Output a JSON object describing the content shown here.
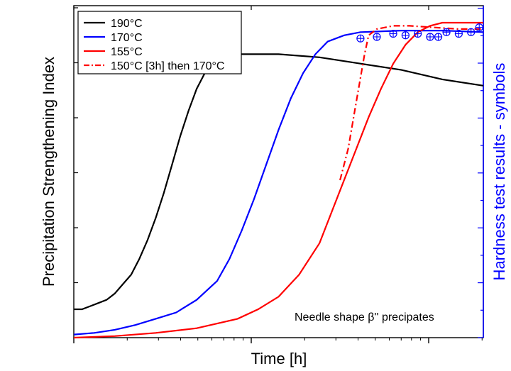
{
  "chart_data": {
    "type": "line",
    "xlabel": "Time [h]",
    "ylabel_left": "Precipitation Strengthening Index",
    "ylabel_right": "Hardness test results - symbols",
    "x_scale": "log",
    "annotation": "Needle shape β'' precipates",
    "x_ticks_labeled": false,
    "y_ticks_labeled": false,
    "legend_position": "top-left",
    "series": [
      {
        "name": "190°C",
        "color": "#000000",
        "style": "solid",
        "points": [
          [
            0,
            0.09
          ],
          [
            0.02,
            0.09
          ],
          [
            0.04,
            0.1
          ],
          [
            0.06,
            0.11
          ],
          [
            0.08,
            0.12
          ],
          [
            0.1,
            0.14
          ],
          [
            0.12,
            0.17
          ],
          [
            0.14,
            0.2
          ],
          [
            0.16,
            0.25
          ],
          [
            0.18,
            0.31
          ],
          [
            0.2,
            0.38
          ],
          [
            0.22,
            0.46
          ],
          [
            0.24,
            0.55
          ],
          [
            0.26,
            0.64
          ],
          [
            0.28,
            0.72
          ],
          [
            0.3,
            0.79
          ],
          [
            0.32,
            0.84
          ],
          [
            0.34,
            0.87
          ],
          [
            0.36,
            0.89
          ],
          [
            0.38,
            0.896
          ],
          [
            0.4,
            0.9
          ],
          [
            0.5,
            0.9
          ],
          [
            0.6,
            0.89
          ],
          [
            0.7,
            0.87
          ],
          [
            0.8,
            0.85
          ],
          [
            0.9,
            0.82
          ],
          [
            1.0,
            0.8
          ]
        ]
      },
      {
        "name": "170°C",
        "color": "#0000ff",
        "style": "solid",
        "points": [
          [
            0,
            0.01
          ],
          [
            0.05,
            0.015
          ],
          [
            0.1,
            0.025
          ],
          [
            0.15,
            0.04
          ],
          [
            0.2,
            0.06
          ],
          [
            0.25,
            0.08
          ],
          [
            0.3,
            0.12
          ],
          [
            0.35,
            0.18
          ],
          [
            0.38,
            0.25
          ],
          [
            0.41,
            0.34
          ],
          [
            0.44,
            0.44
          ],
          [
            0.47,
            0.55
          ],
          [
            0.5,
            0.66
          ],
          [
            0.53,
            0.76
          ],
          [
            0.56,
            0.84
          ],
          [
            0.59,
            0.9
          ],
          [
            0.62,
            0.94
          ],
          [
            0.66,
            0.96
          ],
          [
            0.7,
            0.97
          ],
          [
            0.8,
            0.975
          ],
          [
            0.9,
            0.975
          ],
          [
            1.0,
            0.97
          ]
        ]
      },
      {
        "name": "155°C",
        "color": "#ff0000",
        "style": "solid",
        "points": [
          [
            0,
            0.0
          ],
          [
            0.1,
            0.005
          ],
          [
            0.2,
            0.015
          ],
          [
            0.3,
            0.03
          ],
          [
            0.4,
            0.06
          ],
          [
            0.45,
            0.09
          ],
          [
            0.5,
            0.13
          ],
          [
            0.55,
            0.2
          ],
          [
            0.6,
            0.3
          ],
          [
            0.63,
            0.4
          ],
          [
            0.66,
            0.5
          ],
          [
            0.69,
            0.6
          ],
          [
            0.72,
            0.7
          ],
          [
            0.75,
            0.79
          ],
          [
            0.78,
            0.87
          ],
          [
            0.81,
            0.93
          ],
          [
            0.84,
            0.97
          ],
          [
            0.87,
            0.99
          ],
          [
            0.9,
            1.0
          ],
          [
            1.0,
            1.0
          ]
        ]
      },
      {
        "name": "150°C [3h] then 170°C",
        "color": "#ff0000",
        "style": "dashdot",
        "points": [
          [
            0.65,
            0.5
          ],
          [
            0.67,
            0.6
          ],
          [
            0.69,
            0.75
          ],
          [
            0.71,
            0.9
          ],
          [
            0.72,
            0.96
          ],
          [
            0.74,
            0.98
          ],
          [
            0.76,
            0.985
          ],
          [
            0.78,
            0.99
          ],
          [
            0.82,
            0.99
          ],
          [
            0.88,
            0.985
          ],
          [
            0.94,
            0.98
          ],
          [
            1.0,
            0.98
          ]
        ]
      }
    ],
    "hardness_points": [
      [
        0.7,
        0.95
      ],
      [
        0.74,
        0.955
      ],
      [
        0.78,
        0.965
      ],
      [
        0.81,
        0.96
      ],
      [
        0.84,
        0.965
      ],
      [
        0.87,
        0.955
      ],
      [
        0.89,
        0.955
      ],
      [
        0.91,
        0.97
      ],
      [
        0.94,
        0.965
      ],
      [
        0.97,
        0.97
      ],
      [
        0.99,
        0.985
      ]
    ],
    "hardness_marker": {
      "color": "#0000ff",
      "shape": "circle-plus"
    }
  }
}
